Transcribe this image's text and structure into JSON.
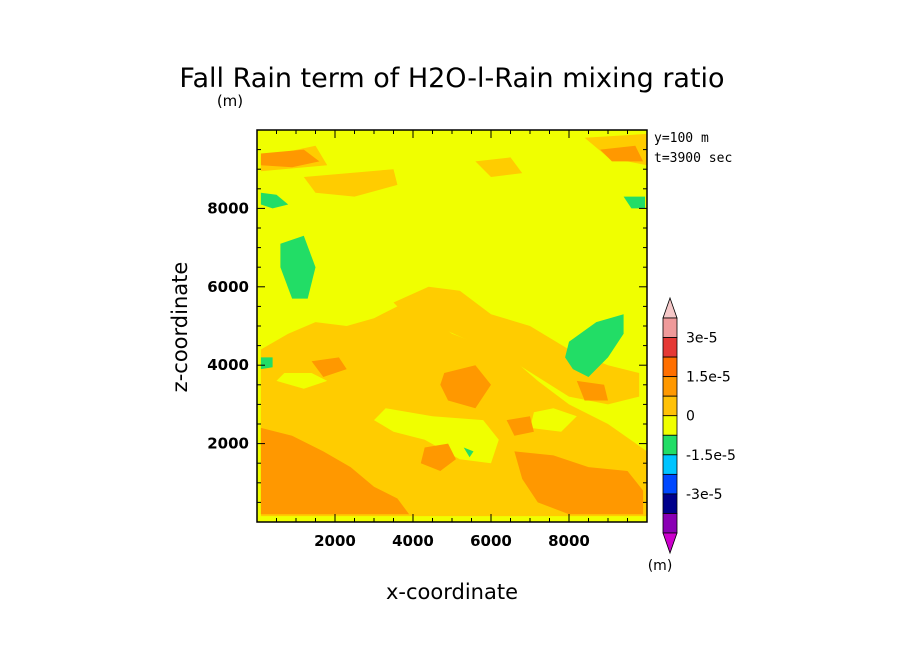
{
  "chart_data": {
    "type": "heatmap",
    "title": "Fall Rain term of H2O-l-Rain mixing ratio",
    "title_unit": "(m)",
    "xlabel": "x-coordinate",
    "ylabel": "z-coordinate",
    "xlim": [
      0,
      10000
    ],
    "ylim": [
      0,
      10000
    ],
    "x_ticks": [
      "2000",
      "4000",
      "6000",
      "8000"
    ],
    "y_ticks": [
      "2000",
      "4000",
      "6000",
      "8000"
    ],
    "annotations": [
      "y=100 m",
      "t=3900 sec"
    ],
    "background_level": "0",
    "colorbar": {
      "unit_label": "(m)",
      "tick_labels": [
        "3e-5",
        "1.5e-5",
        "0",
        "-1.5e-5",
        "-3e-5"
      ],
      "colors": [
        "#f5c8c8",
        "#ef9a9a",
        "#e53935",
        "#ff6f00",
        "#ff9800",
        "#ffc107",
        "#f0ff00",
        "#22dd66",
        "#00c4ff",
        "#0048ff",
        "#00008b",
        "#8a00b4",
        "#cc00cc"
      ]
    },
    "regions": [
      {
        "level": "positive_low",
        "color": "#ffcc00",
        "points": [
          [
            100,
            150
          ],
          [
            10000,
            150
          ],
          [
            10000,
            1800
          ],
          [
            9000,
            2500
          ],
          [
            8000,
            3000
          ],
          [
            7200,
            3600
          ],
          [
            6500,
            4200
          ],
          [
            5800,
            4500
          ],
          [
            5000,
            4800
          ],
          [
            4300,
            5300
          ],
          [
            3600,
            5500
          ],
          [
            3000,
            5200
          ],
          [
            2300,
            5000
          ],
          [
            1500,
            5100
          ],
          [
            800,
            4800
          ],
          [
            100,
            4400
          ]
        ]
      },
      {
        "level": "positive_low",
        "color": "#ffcc00",
        "points": [
          [
            3500,
            5600
          ],
          [
            4400,
            6000
          ],
          [
            5200,
            5900
          ],
          [
            6000,
            5300
          ],
          [
            7000,
            5000
          ],
          [
            8000,
            4400
          ],
          [
            9000,
            4000
          ],
          [
            9800,
            3800
          ],
          [
            9800,
            3200
          ],
          [
            9000,
            3000
          ],
          [
            8000,
            3200
          ],
          [
            7200,
            3700
          ],
          [
            6400,
            4200
          ],
          [
            5500,
            4600
          ],
          [
            4600,
            5000
          ],
          [
            3800,
            5300
          ]
        ]
      },
      {
        "level": "positive_low",
        "color": "#ffcc00",
        "points": [
          [
            1200,
            8800
          ],
          [
            3500,
            9000
          ],
          [
            3600,
            8600
          ],
          [
            2500,
            8300
          ],
          [
            1500,
            8400
          ]
        ]
      },
      {
        "level": "positive_low",
        "color": "#ffcc00",
        "points": [
          [
            100,
            9300
          ],
          [
            1500,
            9600
          ],
          [
            1800,
            9100
          ],
          [
            100,
            8950
          ]
        ]
      },
      {
        "level": "positive_low",
        "color": "#ffcc00",
        "points": [
          [
            8400,
            9800
          ],
          [
            10000,
            9900
          ],
          [
            10000,
            9100
          ],
          [
            9000,
            9300
          ]
        ]
      },
      {
        "level": "positive_low",
        "color": "#ffcc00",
        "points": [
          [
            5600,
            9200
          ],
          [
            6500,
            9300
          ],
          [
            6800,
            8900
          ],
          [
            6000,
            8800
          ]
        ]
      },
      {
        "level": "near_zero",
        "color": "#f0ff00",
        "points": [
          [
            3300,
            2900
          ],
          [
            4500,
            2700
          ],
          [
            5800,
            2600
          ],
          [
            6200,
            2100
          ],
          [
            6000,
            1500
          ],
          [
            5200,
            1600
          ],
          [
            4300,
            2100
          ],
          [
            3500,
            2300
          ],
          [
            3000,
            2600
          ]
        ]
      },
      {
        "level": "near_zero",
        "color": "#f0ff00",
        "points": [
          [
            500,
            3600
          ],
          [
            1200,
            3400
          ],
          [
            1800,
            3600
          ],
          [
            1400,
            3800
          ],
          [
            700,
            3800
          ]
        ]
      },
      {
        "level": "near_zero",
        "color": "#f0ff00",
        "points": [
          [
            7000,
            2400
          ],
          [
            7800,
            2300
          ],
          [
            8200,
            2700
          ],
          [
            7600,
            2900
          ],
          [
            7100,
            2800
          ]
        ]
      },
      {
        "level": "positive_mid",
        "color": "#ff9800",
        "points": [
          [
            4800,
            3800
          ],
          [
            5600,
            4000
          ],
          [
            6000,
            3500
          ],
          [
            5600,
            2900
          ],
          [
            4900,
            3100
          ],
          [
            4700,
            3500
          ]
        ]
      },
      {
        "level": "positive_mid",
        "color": "#ff9800",
        "points": [
          [
            100,
            2400
          ],
          [
            900,
            2200
          ],
          [
            1700,
            1800
          ],
          [
            2400,
            1400
          ],
          [
            3000,
            900
          ],
          [
            3600,
            600
          ],
          [
            3900,
            200
          ],
          [
            100,
            200
          ]
        ]
      },
      {
        "level": "positive_mid",
        "color": "#ff9800",
        "points": [
          [
            6600,
            1800
          ],
          [
            7600,
            1700
          ],
          [
            8500,
            1400
          ],
          [
            9500,
            1300
          ],
          [
            9900,
            800
          ],
          [
            9900,
            200
          ],
          [
            8000,
            200
          ],
          [
            7200,
            500
          ],
          [
            6800,
            1100
          ]
        ]
      },
      {
        "level": "positive_mid",
        "color": "#ff9800",
        "points": [
          [
            4300,
            1900
          ],
          [
            4900,
            2000
          ],
          [
            5100,
            1600
          ],
          [
            4700,
            1300
          ],
          [
            4200,
            1500
          ]
        ]
      },
      {
        "level": "positive_mid",
        "color": "#ff9800",
        "points": [
          [
            100,
            9400
          ],
          [
            1200,
            9500
          ],
          [
            1600,
            9200
          ],
          [
            900,
            9050
          ],
          [
            100,
            9100
          ]
        ]
      },
      {
        "level": "positive_mid",
        "color": "#ff9800",
        "points": [
          [
            8800,
            9500
          ],
          [
            9700,
            9600
          ],
          [
            9900,
            9200
          ],
          [
            9100,
            9200
          ]
        ]
      },
      {
        "level": "positive_mid",
        "color": "#ff9800",
        "points": [
          [
            1400,
            4100
          ],
          [
            2100,
            4200
          ],
          [
            2300,
            3900
          ],
          [
            1700,
            3700
          ]
        ]
      },
      {
        "level": "positive_mid",
        "color": "#ff9800",
        "points": [
          [
            6400,
            2600
          ],
          [
            7000,
            2700
          ],
          [
            7100,
            2300
          ],
          [
            6600,
            2200
          ]
        ]
      },
      {
        "level": "positive_mid",
        "color": "#ff9800",
        "points": [
          [
            8200,
            3600
          ],
          [
            8900,
            3500
          ],
          [
            9000,
            3100
          ],
          [
            8400,
            3100
          ]
        ]
      },
      {
        "level": "positive_mid",
        "color": "#ff9800",
        "points": [
          [
            1300,
            1600
          ],
          [
            1900,
            1500
          ],
          [
            2000,
            1200
          ],
          [
            1500,
            1100
          ]
        ]
      },
      {
        "level": "negative_low",
        "color": "#22dd66",
        "points": [
          [
            600,
            7100
          ],
          [
            1200,
            7300
          ],
          [
            1500,
            6500
          ],
          [
            1300,
            5700
          ],
          [
            900,
            5700
          ],
          [
            600,
            6500
          ]
        ]
      },
      {
        "level": "negative_low",
        "color": "#22dd66",
        "points": [
          [
            100,
            8400
          ],
          [
            500,
            8350
          ],
          [
            800,
            8100
          ],
          [
            400,
            8000
          ],
          [
            100,
            8100
          ]
        ]
      },
      {
        "level": "negative_low",
        "color": "#22dd66",
        "points": [
          [
            9400,
            8300
          ],
          [
            9950,
            8300
          ],
          [
            9950,
            8000
          ],
          [
            9600,
            8000
          ]
        ]
      },
      {
        "level": "negative_low",
        "color": "#22dd66",
        "points": [
          [
            8000,
            4600
          ],
          [
            8700,
            5100
          ],
          [
            9400,
            5300
          ],
          [
            9400,
            4800
          ],
          [
            9000,
            4200
          ],
          [
            8500,
            3700
          ],
          [
            8100,
            3900
          ],
          [
            7900,
            4200
          ]
        ]
      },
      {
        "level": "negative_low",
        "color": "#22dd66",
        "points": [
          [
            100,
            4200
          ],
          [
            400,
            4200
          ],
          [
            400,
            3950
          ],
          [
            100,
            3900
          ]
        ]
      },
      {
        "level": "negative_low",
        "color": "#22dd66",
        "points": [
          [
            5300,
            1900
          ],
          [
            5550,
            1800
          ],
          [
            5450,
            1650
          ]
        ]
      }
    ]
  }
}
